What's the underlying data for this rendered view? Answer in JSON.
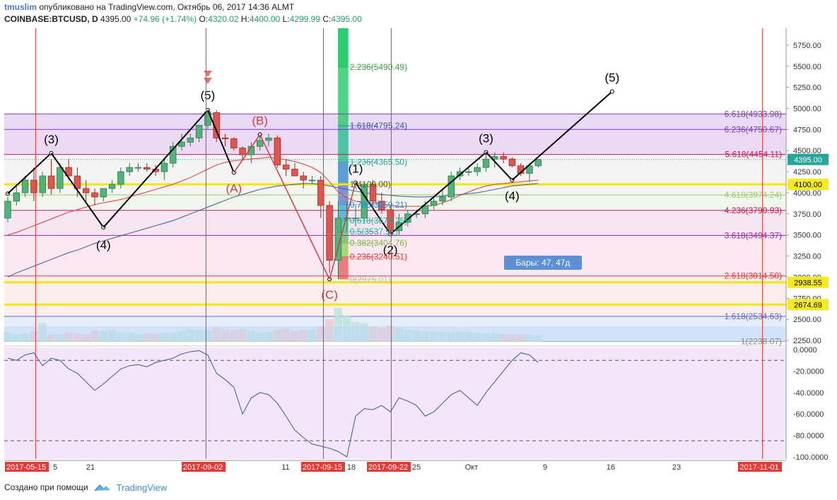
{
  "header": {
    "author": "tmuslim",
    "published": "опубликовано на TradingView.com, Октябрь 06, 2017 14:36 ALMT",
    "symbol": "COINBASE:BTCUSD, D",
    "last": "4395.00",
    "change": "+74.96 (+1.74%)",
    "o_label": "O:",
    "o": "4320.02",
    "h_label": "H:",
    "h": "4400.00",
    "l_label": "L:",
    "l": "4299.99",
    "c_label": "C:",
    "c": "4395.00"
  },
  "footer": {
    "created_with": "Создано при помощи",
    "brand": "TradingView"
  },
  "colors": {
    "up": "#26a69a",
    "down": "#ef5350",
    "wave": "#000000",
    "corr": "#d04040",
    "yellow": "#f5e60a",
    "vline": "#e53935"
  },
  "chart_data": {
    "type": "candlestick",
    "price_axis": {
      "ticks": [
        5750,
        5500,
        5250,
        5000,
        4750,
        4500,
        4250,
        4000,
        3750,
        3500,
        3250,
        3000,
        2750,
        2500,
        2250
      ],
      "tick_labels": [
        "5750.00",
        "5500.00",
        "5250.00",
        "5000.00",
        "4750.00",
        "4500.00",
        "4250.00",
        "4000.00",
        "3750.00",
        "3500.00",
        "3250.00",
        "3000.00",
        "2750.00",
        "2500.00",
        "2250.00"
      ],
      "range": [
        2200,
        5950
      ],
      "badges": [
        {
          "label": "4395.00",
          "value": 4395,
          "style": "last"
        },
        {
          "label": "4100.00",
          "value": 4100,
          "style": "yellow"
        },
        {
          "label": "2938.55",
          "value": 2938.55,
          "style": "yellow"
        },
        {
          "label": "2674.69",
          "value": 2674.69,
          "style": "yellow"
        }
      ]
    },
    "time_axis": {
      "labels": [
        {
          "label": "2017-05-15",
          "bar": 0,
          "highlight": true
        },
        {
          "label": "5",
          "bar": 6
        },
        {
          "label": "21",
          "bar": 10
        },
        {
          "label": "2017-09-02",
          "bar": 24,
          "highlight": true
        },
        {
          "label": "11",
          "bar": 33
        },
        {
          "label": "2017-09-15",
          "bar": 38,
          "highlight": true
        },
        {
          "label": "18",
          "bar": 41
        },
        {
          "label": "2017-09-22",
          "bar": 45,
          "highlight": true
        },
        {
          "label": "25",
          "bar": 49
        },
        {
          "label": "Окт",
          "bar": 55
        },
        {
          "label": "9",
          "bar": 64
        },
        {
          "label": "16",
          "bar": 72
        },
        {
          "label": "23",
          "bar": 80
        },
        {
          "label": "2017-11-01",
          "bar": 89,
          "highlight": true
        }
      ]
    },
    "candles": [
      [
        3700,
        3950,
        3650,
        3900
      ],
      [
        3900,
        4100,
        3850,
        4000
      ],
      [
        4000,
        4200,
        3950,
        4150
      ],
      [
        4150,
        4300,
        3900,
        4000
      ],
      [
        4000,
        4250,
        3950,
        4200
      ],
      [
        4200,
        4400,
        3980,
        4050
      ],
      [
        4050,
        4350,
        4000,
        4300
      ],
      [
        4300,
        4400,
        4150,
        4200
      ],
      [
        4200,
        4300,
        3950,
        4050
      ],
      [
        4050,
        4150,
        3900,
        4000
      ],
      [
        4000,
        4050,
        3850,
        3950
      ],
      [
        3950,
        4050,
        3900,
        4050
      ],
      [
        4050,
        4150,
        4000,
        4100
      ],
      [
        4100,
        4300,
        4050,
        4250
      ],
      [
        4250,
        4350,
        4200,
        4300
      ],
      [
        4300,
        4350,
        4250,
        4300
      ],
      [
        4300,
        4350,
        4250,
        4280
      ],
      [
        4280,
        4330,
        4200,
        4250
      ],
      [
        4250,
        4400,
        4150,
        4350
      ],
      [
        4350,
        4600,
        4300,
        4550
      ],
      [
        4550,
        4700,
        4500,
        4600
      ],
      [
        4600,
        4700,
        4550,
        4650
      ],
      [
        4650,
        4800,
        4600,
        4800
      ],
      [
        4800,
        4980,
        4750,
        4960
      ],
      [
        4950,
        4980,
        4600,
        4650
      ],
      [
        4650,
        4700,
        4550,
        4640
      ],
      [
        4640,
        4660,
        4500,
        4530
      ],
      [
        4530,
        4550,
        4400,
        4450
      ],
      [
        4450,
        4600,
        4350,
        4550
      ],
      [
        4550,
        4700,
        4500,
        4620
      ],
      [
        4620,
        4700,
        4550,
        4650
      ],
      [
        4650,
        4680,
        4300,
        4330
      ],
      [
        4330,
        4400,
        4200,
        4280
      ],
      [
        4280,
        4350,
        4200,
        4200
      ],
      [
        4200,
        4250,
        4050,
        4150
      ],
      [
        4150,
        4200,
        4100,
        4150
      ],
      [
        4150,
        4200,
        3700,
        3850
      ],
      [
        3850,
        3900,
        3050,
        3200
      ],
      [
        3200,
        3900,
        2980,
        3700
      ],
      [
        3700,
        3900,
        3550,
        3700
      ],
      [
        3700,
        3850,
        3600,
        3700
      ],
      [
        3700,
        4120,
        3650,
        4100
      ],
      [
        4100,
        4150,
        3800,
        3900
      ],
      [
        3900,
        4000,
        3750,
        3800
      ],
      [
        3800,
        3850,
        3500,
        3550
      ],
      [
        3550,
        3750,
        3500,
        3650
      ],
      [
        3650,
        3800,
        3600,
        3750
      ],
      [
        3750,
        3800,
        3700,
        3750
      ],
      [
        3750,
        3900,
        3700,
        3850
      ],
      [
        3850,
        3950,
        3800,
        3900
      ],
      [
        3900,
        4050,
        3850,
        3950
      ],
      [
        3950,
        4250,
        3900,
        4200
      ],
      [
        4200,
        4300,
        4150,
        4250
      ],
      [
        4250,
        4320,
        4200,
        4250
      ],
      [
        4250,
        4350,
        4200,
        4300
      ],
      [
        4300,
        4500,
        4250,
        4400
      ],
      [
        4400,
        4480,
        4300,
        4430
      ],
      [
        4430,
        4480,
        4350,
        4400
      ],
      [
        4400,
        4420,
        4300,
        4320
      ],
      [
        4320,
        4350,
        4200,
        4230
      ],
      [
        4230,
        4350,
        4130,
        4320
      ],
      [
        4320,
        4400,
        4300,
        4395
      ]
    ],
    "series": [
      {
        "name": "",
        "type": "line",
        "color": "#e53935",
        "values": [
          3500,
          3530,
          3570,
          3610,
          3650,
          3690,
          3730,
          3770,
          3800,
          3830,
          3860,
          3880,
          3900,
          3920,
          3950,
          3980,
          4010,
          4040,
          4070,
          4100,
          4140,
          4180,
          4230,
          4280,
          4330,
          4360,
          4380,
          4390,
          4400,
          4410,
          4420,
          4410,
          4390,
          4370,
          4340,
          4300,
          4240,
          4130,
          4010,
          3940,
          3900,
          3890,
          3880,
          3870,
          3850,
          3840,
          3840,
          3840,
          3840,
          3850,
          3880,
          3920,
          3970,
          4010,
          4050,
          4080,
          4100,
          4110,
          4120,
          4130,
          4140,
          4150
        ]
      },
      {
        "name": "",
        "type": "line",
        "color": "#3b5998",
        "values": [
          3000,
          3050,
          3090,
          3130,
          3170,
          3210,
          3250,
          3290,
          3320,
          3360,
          3400,
          3430,
          3460,
          3490,
          3520,
          3550,
          3580,
          3610,
          3640,
          3670,
          3710,
          3750,
          3790,
          3830,
          3870,
          3910,
          3950,
          3980,
          4010,
          4040,
          4060,
          4080,
          4090,
          4100,
          4110,
          4110,
          4100,
          4080,
          4060,
          4040,
          4020,
          4000,
          3990,
          3980,
          3970,
          3960,
          3955,
          3950,
          3950,
          3955,
          3960,
          3970,
          3980,
          3990,
          4000,
          4020,
          4040,
          4060,
          4080,
          4090,
          4100,
          4110
        ]
      }
    ],
    "volume": [
      200,
      160,
      180,
      230,
      400,
      150,
      170,
      200,
      180,
      160,
      240,
      230,
      260,
      200,
      190,
      160,
      180,
      170,
      190,
      200,
      230,
      260,
      250,
      240,
      310,
      260,
      250,
      270,
      230,
      200,
      210,
      260,
      280,
      230,
      260,
      250,
      330,
      480,
      720,
      560,
      420,
      400,
      330,
      290,
      340,
      300,
      250,
      230,
      230,
      220,
      210,
      200,
      220,
      210,
      190,
      180,
      190,
      170,
      170,
      160,
      150,
      140
    ],
    "indicator": {
      "ticks": [
        0,
        -20,
        -40,
        -60,
        -80,
        -100
      ],
      "tick_labels": [
        "0.0000",
        "-20.0000",
        "-40.0000",
        "-60.0000",
        "-80.0000",
        "-100.0000"
      ],
      "levels": [
        -10,
        -85
      ],
      "range": [
        -102,
        2
      ],
      "values": [
        -8,
        -10,
        -5,
        -3,
        -15,
        -8,
        -10,
        -18,
        -22,
        -30,
        -38,
        -32,
        -25,
        -18,
        -15,
        -14,
        -16,
        -12,
        -10,
        -8,
        -4,
        -2,
        -1,
        -5,
        -22,
        -28,
        -35,
        -60,
        -45,
        -40,
        -42,
        -50,
        -62,
        -75,
        -82,
        -88,
        -90,
        -92,
        -95,
        -100,
        -62,
        -55,
        -56,
        -52,
        -58,
        -45,
        -48,
        -52,
        -62,
        -58,
        -50,
        -42,
        -38,
        -45,
        -52,
        -40,
        -30,
        -20,
        -10,
        -3,
        -5,
        -12
      ]
    },
    "fib_extension": {
      "levels": [
        {
          "label": "6.618(4933.98)",
          "value": 4933.98,
          "color": "#7b3fb8"
        },
        {
          "label": "6.236(4750.67)",
          "value": 4750.67,
          "color": "#7b3fb8"
        },
        {
          "label": "5.618(4454.11)",
          "value": 4454.11,
          "color": "#c2185b"
        },
        {
          "label": "4.618(3974.24)",
          "value": 3974.24,
          "color": "#9ccc65"
        },
        {
          "label": "4.236(3790.93)",
          "value": 3790.93,
          "color": "#c2185b"
        },
        {
          "label": "3.618(3494.37)",
          "value": 3494.37,
          "color": "#9c27b0"
        },
        {
          "label": "2.618(3014.50)",
          "value": 3014.5,
          "color": "#e53935"
        },
        {
          "label": "1.618(2534.63)",
          "value": 2534.63,
          "color": "#5c6bc0"
        },
        {
          "label": "1(2238.07)",
          "value": 2238.07,
          "color": "#888888"
        }
      ]
    },
    "fib_retracement": {
      "levels": [
        {
          "label": "2.236(5490.49)",
          "value": 5490.49,
          "color": "#43a047"
        },
        {
          "label": "1.618(4795.24)",
          "value": 4795.24,
          "color": "#3f51b5"
        },
        {
          "label": "1.236(4365.50)",
          "value": 4365.5,
          "color": "#26a69a"
        },
        {
          "label": "1(4100.00)",
          "value": 4100.0,
          "color": "#555555"
        },
        {
          "label": "0.786(3859.21)",
          "value": 3859.21,
          "color": "#1e88e5"
        },
        {
          "label": "0.618(3670.25)",
          "value": 3670.25,
          "color": "#26a69a"
        },
        {
          "label": "0.5(3537.51)",
          "value": 3537.51,
          "color": "#26a69a"
        },
        {
          "label": "0.382(3404.76)",
          "value": 3404.76,
          "color": "#7cb342"
        },
        {
          "label": "0.236(3240.51)",
          "value": 3240.51,
          "color": "#e53935"
        },
        {
          "label": "0(2975.01)",
          "value": 2975.01,
          "color": "#bbbbbb"
        }
      ]
    },
    "wave_labels": [
      {
        "label": "(3)",
        "bar": 3,
        "value": 4470,
        "color": "#000000"
      },
      {
        "label": "(4)",
        "bar": 6,
        "value": 3570,
        "color": "#000000"
      },
      {
        "label": "(5)",
        "bar": 13,
        "value": 4990,
        "color": "#000000"
      },
      {
        "label": "(A)",
        "bar": 16,
        "value": 4240,
        "color": "#d04040"
      },
      {
        "label": "(B)",
        "bar": 18,
        "value": 4690,
        "color": "#d04040"
      },
      {
        "label": "(C)",
        "bar": 22,
        "value": 2980,
        "color": "#d04040"
      },
      {
        "label": "(1)",
        "bar": 24,
        "value": 4120,
        "color": "#000000"
      },
      {
        "label": "(2)",
        "bar": 27,
        "value": 3510,
        "color": "#000000"
      },
      {
        "label": "(3)",
        "bar": 33,
        "value": 4480,
        "color": "#000000"
      },
      {
        "label": "(4)",
        "bar": 35,
        "value": 4150,
        "color": "#000000"
      },
      {
        "label": "(5)",
        "bar": 42,
        "value": 5200,
        "color": "#000000"
      }
    ],
    "bars_label": "Бары: 47, 47д"
  }
}
